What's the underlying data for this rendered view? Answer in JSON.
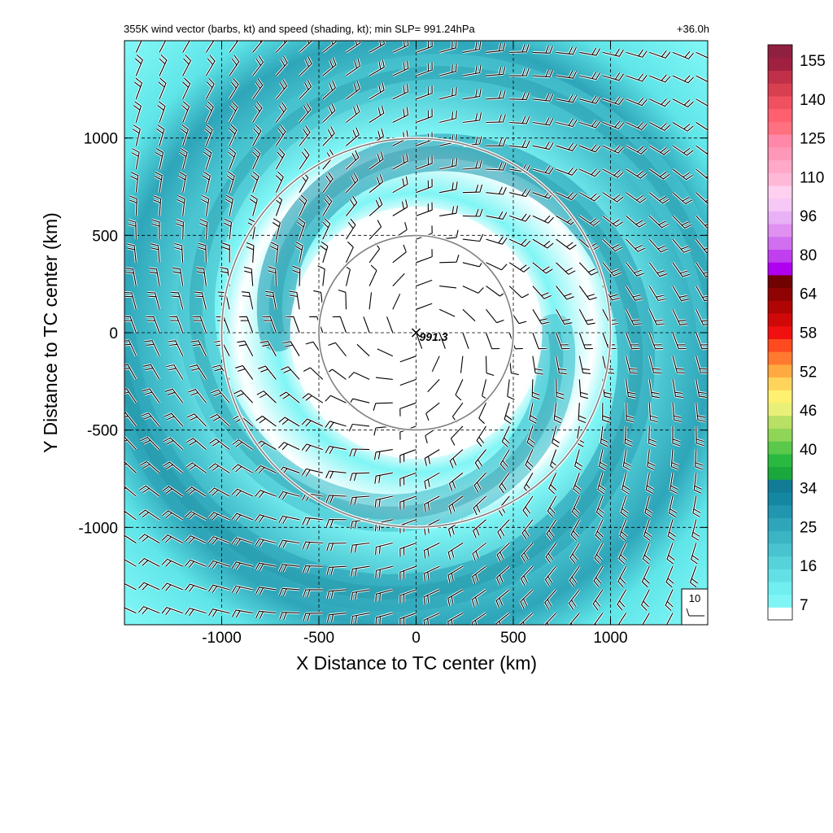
{
  "title": "355K wind vector (barbs, kt) and speed (shading, kt); min SLP= 991.24hPa",
  "forecast_time": "+36.0h",
  "colors": {
    "low": "#ffffff",
    "cyan_light": "#7ff5f5",
    "cyan": "#5fe5e8",
    "teal": "#3fb3c0",
    "teal_dark": "#1f8ea0",
    "ring": "#808080"
  },
  "chart_data": {
    "type": "heatmap",
    "title": "355K wind vector (barbs, kt) and speed (shading, kt); min SLP= 991.24hPa",
    "xlabel": "X Distance to TC center (km)",
    "ylabel": "Y Distance to TC center (km)",
    "xlim": [
      -1500,
      1500
    ],
    "ylim": [
      -1500,
      1500
    ],
    "x_ticks": [
      -1000,
      -500,
      0,
      500,
      1000
    ],
    "y_ticks": [
      -1000,
      -500,
      0,
      500,
      1000
    ],
    "x_tick_labels": [
      "-1000",
      "-500",
      "0",
      "500",
      "1000"
    ],
    "y_tick_labels": [
      "-1000",
      "-500",
      "0",
      "500",
      "1000"
    ],
    "grid": true,
    "range_rings_km": [
      500,
      1000
    ],
    "center_marker": {
      "x": 0,
      "y": 0,
      "label": "991.3"
    },
    "reference_barb_label": "10",
    "colorbar": {
      "labels": [
        "155",
        "140",
        "125",
        "110",
        "96",
        "80",
        "64",
        "58",
        "52",
        "46",
        "40",
        "34",
        "25",
        "16",
        "7"
      ],
      "colors": [
        "#ffffff",
        "#7ff5f5",
        "#70eef0",
        "#62e0e5",
        "#55d2da",
        "#48c3cf",
        "#3bb4c4",
        "#2ea5b9",
        "#2196ae",
        "#1587a3",
        "#127b95",
        "#1aa83c",
        "#2ab940",
        "#5ac84a",
        "#8fd558",
        "#b8e064",
        "#e8f078",
        "#fff070",
        "#ffd45a",
        "#ffaa40",
        "#ff7a30",
        "#ff4a20",
        "#f01010",
        "#d00808",
        "#b00505",
        "#900303",
        "#700202",
        "#b000f0",
        "#c040f0",
        "#d070f0",
        "#e090f0",
        "#e8b0f5",
        "#f5c8f5",
        "#ffd0f0",
        "#ffb8d8",
        "#ffa8c8",
        "#ff98b8",
        "#ff88a8",
        "#ff7080",
        "#ff6070",
        "#f05060",
        "#d84050",
        "#c03048",
        "#a02040",
        "#902040"
      ]
    },
    "wind_field": {
      "description_units": "kt",
      "inner_ring_speed_kt": 7,
      "band_max_speed_kt": 31
    }
  }
}
